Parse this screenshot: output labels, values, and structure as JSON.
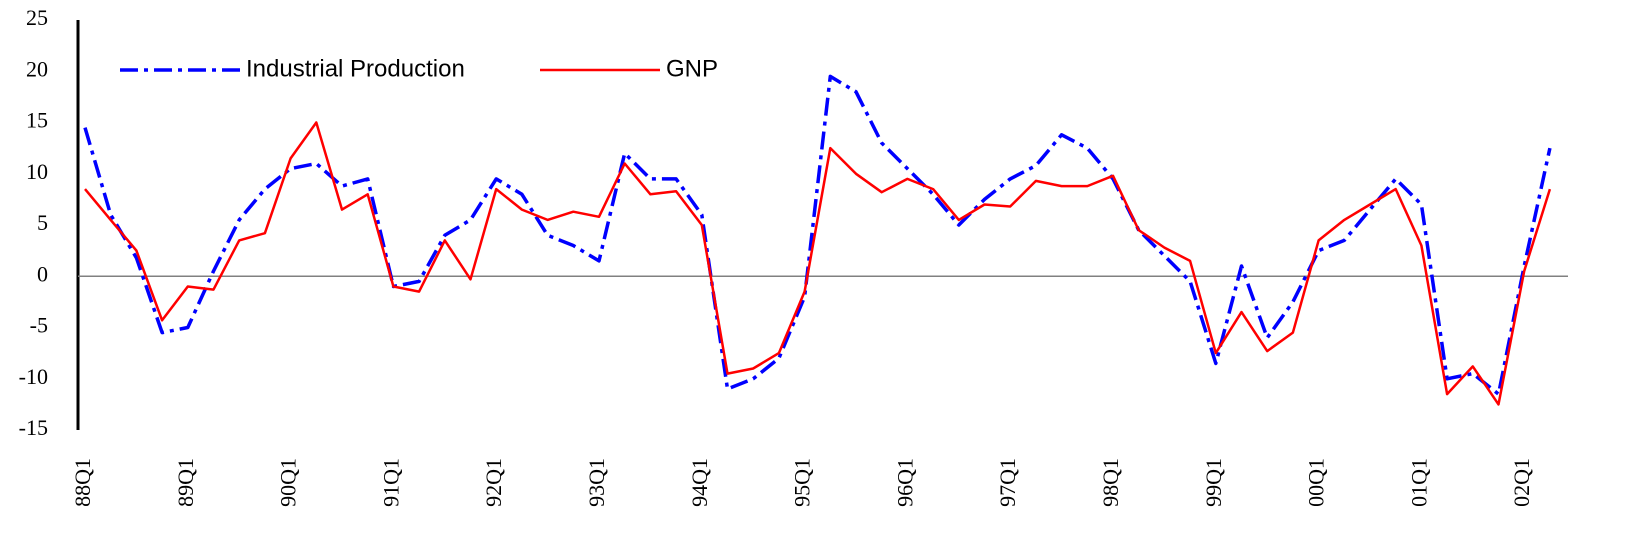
{
  "chart_data": {
    "type": "line",
    "categories": [
      "88Q1",
      null,
      null,
      null,
      "89Q1",
      null,
      null,
      null,
      "90Q1",
      null,
      null,
      null,
      "91Q1",
      null,
      null,
      null,
      "92Q1",
      null,
      null,
      null,
      "93Q1",
      null,
      null,
      null,
      "94Q1",
      null,
      null,
      null,
      "95Q1",
      null,
      null,
      null,
      "96Q1",
      null,
      null,
      null,
      "97Q1",
      null,
      null,
      null,
      "98Q1",
      null,
      null,
      null,
      "99Q1",
      null,
      null,
      null,
      "00Q1",
      null,
      null,
      null,
      "01Q1",
      null,
      null,
      null,
      "02Q1",
      null
    ],
    "series": [
      {
        "name": "Industrial Production",
        "color": "#0000ff",
        "dash": true,
        "values": [
          14.5,
          6,
          1.8,
          -5.5,
          -5,
          0.5,
          5.5,
          8.5,
          10.5,
          11,
          8.8,
          9.5,
          -1,
          -0.5,
          4,
          5.5,
          9.5,
          8,
          4,
          3,
          1.5,
          12,
          9.5,
          9.5,
          6,
          -11,
          -10,
          -8,
          -2,
          19.5,
          18,
          13,
          10.5,
          8,
          5,
          7.5,
          9.5,
          10.8,
          13.8,
          12.5,
          9.5,
          4.5,
          2,
          -0.5,
          -8.5,
          1,
          -6,
          -2.5,
          2.5,
          3.5,
          6.5,
          9.5,
          7,
          -10,
          -9.5,
          -11.5,
          1,
          12.5
        ]
      },
      {
        "name": "GNP",
        "color": "#ff0000",
        "dash": false,
        "values": [
          8.5,
          5.5,
          2.5,
          -4.3,
          -1,
          -1.3,
          3.5,
          4.2,
          11.5,
          15,
          6.5,
          8,
          -1,
          -1.5,
          3.5,
          -0.3,
          8.5,
          6.5,
          5.5,
          6.3,
          5.8,
          11,
          8,
          8.3,
          5,
          -9.5,
          -9,
          -7.5,
          -1.5,
          12.5,
          10,
          8.2,
          9.5,
          8.5,
          5.5,
          7,
          6.8,
          9.3,
          8.8,
          8.8,
          9.8,
          4.5,
          2.8,
          1.5,
          -7.5,
          -3.5,
          -7.3,
          -5.5,
          3.5,
          5.5,
          7,
          8.5,
          3,
          -11.5,
          -8.8,
          -12.5,
          0.5,
          8.5
        ]
      }
    ],
    "ylim": [
      -15,
      25
    ],
    "yticks": [
      -15,
      -10,
      -5,
      0,
      5,
      10,
      15,
      20,
      25
    ],
    "legend": "upper left",
    "grid": false
  }
}
